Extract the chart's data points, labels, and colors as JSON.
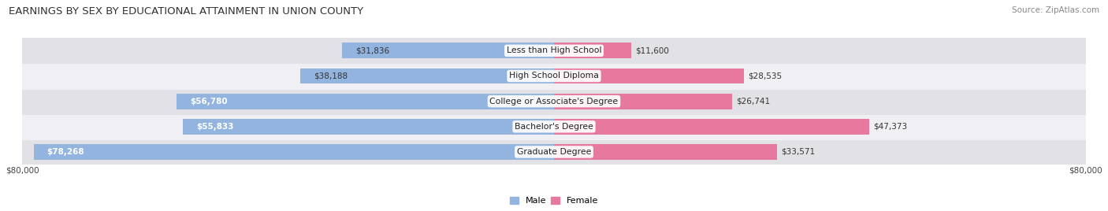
{
  "title": "EARNINGS BY SEX BY EDUCATIONAL ATTAINMENT IN UNION COUNTY",
  "source": "Source: ZipAtlas.com",
  "categories": [
    "Graduate Degree",
    "Bachelor's Degree",
    "College or Associate's Degree",
    "High School Diploma",
    "Less than High School"
  ],
  "male_values": [
    78268,
    55833,
    56780,
    38188,
    31836
  ],
  "female_values": [
    33571,
    47373,
    26741,
    28535,
    11600
  ],
  "max_value": 80000,
  "male_color": "#92b4df",
  "female_color": "#e8799e",
  "row_bg_colors": [
    "#e8e8ea",
    "#f5f5f7"
  ],
  "title_fontsize": 9.5,
  "bar_height": 0.62,
  "xlabel_left": "$80,000",
  "xlabel_right": "$80,000"
}
